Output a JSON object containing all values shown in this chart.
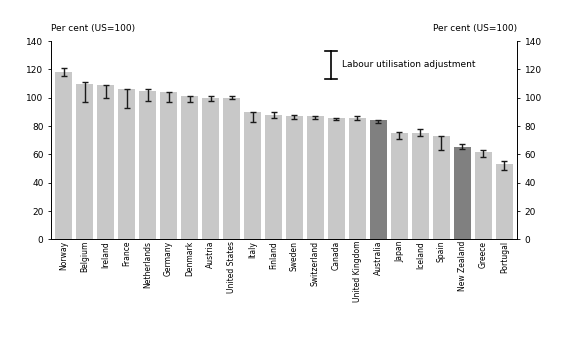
{
  "countries": [
    "Norway",
    "Belgium",
    "Ireland",
    "France",
    "Netherlands",
    "Germany",
    "Denmark",
    "Austria",
    "United States",
    "Italy",
    "Finland",
    "Sweden",
    "Switzerland",
    "Canada",
    "United Kingdom",
    "Australia",
    "Japan",
    "Iceland",
    "Spain",
    "New Zealand",
    "Greece",
    "Portugal"
  ],
  "bar_values": [
    118,
    110,
    109,
    106,
    105,
    104,
    101,
    100,
    100,
    90,
    88,
    87,
    87,
    86,
    86,
    84,
    75,
    75,
    73,
    65,
    62,
    53
  ],
  "err_low": [
    115,
    97,
    100,
    93,
    98,
    97,
    97,
    98,
    99,
    83,
    86,
    85,
    85,
    84,
    84,
    82,
    71,
    73,
    63,
    64,
    58,
    49
  ],
  "err_high": [
    121,
    111,
    109,
    106,
    106,
    104,
    101,
    101,
    101,
    90,
    90,
    88,
    87,
    86,
    87,
    84,
    76,
    78,
    73,
    67,
    63,
    55
  ],
  "dark_bars": [
    15,
    19
  ],
  "bar_color_light": "#c8c8c8",
  "bar_color_dark": "#808080",
  "error_color": "#1a1a1a",
  "ylim": [
    0,
    140
  ],
  "yticks": [
    0,
    20,
    40,
    60,
    80,
    100,
    120,
    140
  ],
  "top_label_left": "Per cent (US=100)",
  "top_label_right": "Per cent (US=100)",
  "legend_label": "Labour utilisation adjustment"
}
